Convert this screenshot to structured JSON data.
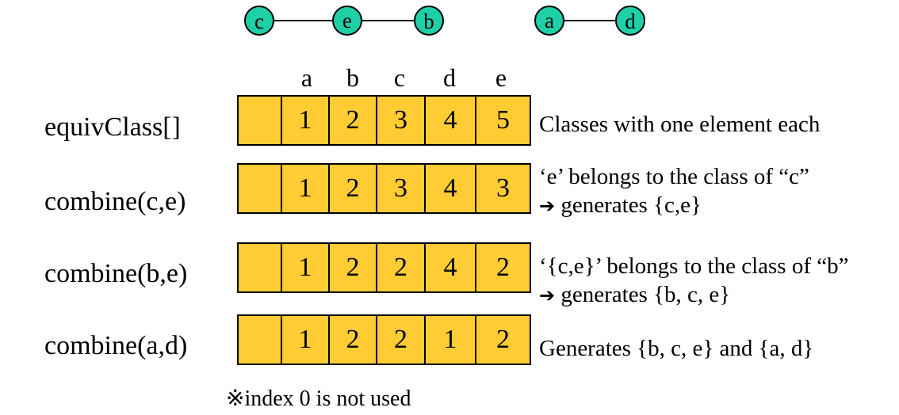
{
  "graph": {
    "nodes": [
      "c",
      "e",
      "b",
      "a",
      "d"
    ],
    "edges": [
      [
        "c",
        "e"
      ],
      [
        "e",
        "b"
      ],
      [
        "a",
        "d"
      ]
    ],
    "node_color": "#1FCFA8"
  },
  "array": {
    "columns": [
      "a",
      "b",
      "c",
      "d",
      "e"
    ],
    "fill_color": "#FFCC33"
  },
  "rows": [
    {
      "label": "equivClass[]",
      "values": [
        "",
        "1",
        "2",
        "3",
        "4",
        "5"
      ],
      "note_lines": [
        "Classes with one element each"
      ]
    },
    {
      "label": "combine(c,e)",
      "values": [
        "",
        "1",
        "2",
        "3",
        "4",
        "3"
      ],
      "note_lines": [
        "‘e’ belongs to the class of “c”",
        "generates {c,e}"
      ]
    },
    {
      "label": "combine(b,e)",
      "values": [
        "",
        "1",
        "2",
        "2",
        "4",
        "2"
      ],
      "note_lines": [
        "‘{c,e}’ belongs to the class of “b”",
        "generates {b, c, e}"
      ]
    },
    {
      "label": "combine(a,d)",
      "values": [
        "",
        "1",
        "2",
        "2",
        "1",
        "2"
      ],
      "note_lines": [
        "Generates {b, c, e} and {a, d}"
      ]
    }
  ],
  "arrow_symbol": "➔",
  "footnote": "※index 0 is not used"
}
